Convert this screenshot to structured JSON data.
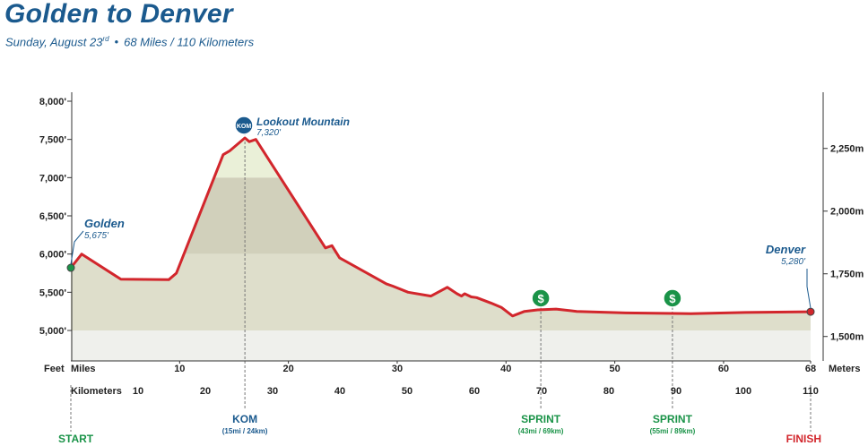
{
  "header": {
    "title": "Golden to Denver",
    "date_prefix": "Sunday, August 23",
    "date_suffix": "rd",
    "separator": "•",
    "distance": "68 Miles / 110 Kilometers"
  },
  "chart_data": {
    "type": "area",
    "title": "Golden to Denver",
    "xlabel": "Miles",
    "ylabel": "Feet",
    "x_unit_label": "Miles",
    "x2_unit_label": "Kilometers",
    "y_unit_label": "Feet",
    "y2_unit_label": "Meters",
    "xlim": [
      0,
      68
    ],
    "ylim": [
      4580,
      8000
    ],
    "mile_ticks": [
      "10",
      "20",
      "30",
      "40",
      "50",
      "60",
      "68"
    ],
    "km_ticks": [
      "10",
      "20",
      "30",
      "40",
      "50",
      "60",
      "70",
      "80",
      "90",
      "100",
      "110"
    ],
    "feet_ticks": [
      "8,000'",
      "7,500'",
      "7,000'",
      "6,500'",
      "6,000'",
      "5,500'",
      "5,000'"
    ],
    "meter_ticks": [
      "2,250m",
      "2,000m",
      "1,750m",
      "1,500m"
    ],
    "series": [
      {
        "x": [
          0,
          1,
          4.6,
          9,
          9.7,
          14,
          14.6,
          16,
          16.4,
          17,
          23.4,
          24,
          24.7,
          29,
          29.6,
          31,
          33.1,
          34.6,
          35.5,
          35.9,
          36.2,
          36.8,
          37.3,
          38.6,
          39.6,
          40.6,
          41.7,
          42.9,
          44.6,
          46.5,
          51,
          57,
          62,
          68
        ],
        "y": [
          5820,
          6000,
          5670,
          5665,
          5750,
          7300,
          7350,
          7520,
          7470,
          7500,
          6080,
          6110,
          5950,
          5610,
          5580,
          5500,
          5450,
          5565,
          5480,
          5450,
          5480,
          5440,
          5430,
          5360,
          5300,
          5190,
          5250,
          5270,
          5280,
          5250,
          5230,
          5220,
          5235,
          5245
        ]
      }
    ],
    "annotations": [
      {
        "name": "Golden",
        "elevation": "5,675'"
      },
      {
        "name": "Lookout Mountain",
        "elevation": "7,320'"
      },
      {
        "name": "Denver",
        "elevation": "5,280'"
      }
    ],
    "markers": [
      {
        "label": "START",
        "detail": ""
      },
      {
        "label": "KOM",
        "detail": "(15mi / 24km)"
      },
      {
        "label": "SPRINT",
        "detail": "(43mi / 69km)"
      },
      {
        "label": "SPRINT",
        "detail": "(55mi / 89km)"
      },
      {
        "label": "FINISH",
        "detail": ""
      }
    ],
    "kom_badge": "KOM",
    "sprint_badge": "$",
    "grid": false
  },
  "colors": {
    "title": "#1b5a8e",
    "profile_line": "#d2262c",
    "fill_low": "#dedecb",
    "fill_mid": "#d1d0bb",
    "fill_top": "#eaf0d8",
    "sprint": "#1a9348",
    "kom": "#1b5a8e",
    "start": "#1a9348",
    "finish": "#d2262c"
  }
}
